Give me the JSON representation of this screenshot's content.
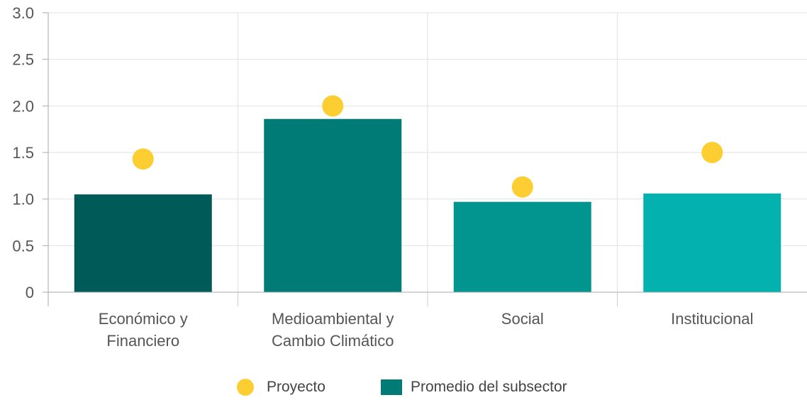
{
  "chart_data": {
    "type": "bar",
    "categories": [
      [
        "Económico y",
        "Financiero"
      ],
      [
        "Medioambiental y",
        "Cambio Climático"
      ],
      [
        "Social"
      ],
      [
        "Institucional"
      ]
    ],
    "series": [
      {
        "name": "Promedio del subsector",
        "kind": "bar",
        "values": [
          1.05,
          1.86,
          0.97,
          1.06
        ]
      },
      {
        "name": "Proyecto",
        "kind": "point",
        "values": [
          1.43,
          2.0,
          1.13,
          1.5
        ]
      }
    ],
    "bar_colors": [
      "#005a58",
      "#017b76",
      "#029590",
      "#03b2af"
    ],
    "point_color": "#fdce32",
    "legend_bar_color": "#017b76",
    "yticks": [
      "0",
      "0.5",
      "1.0",
      "1.5",
      "2.0",
      "2.5",
      "3.0"
    ],
    "ylim": [
      0,
      3
    ],
    "grid": true,
    "legend_position": "bottom"
  }
}
